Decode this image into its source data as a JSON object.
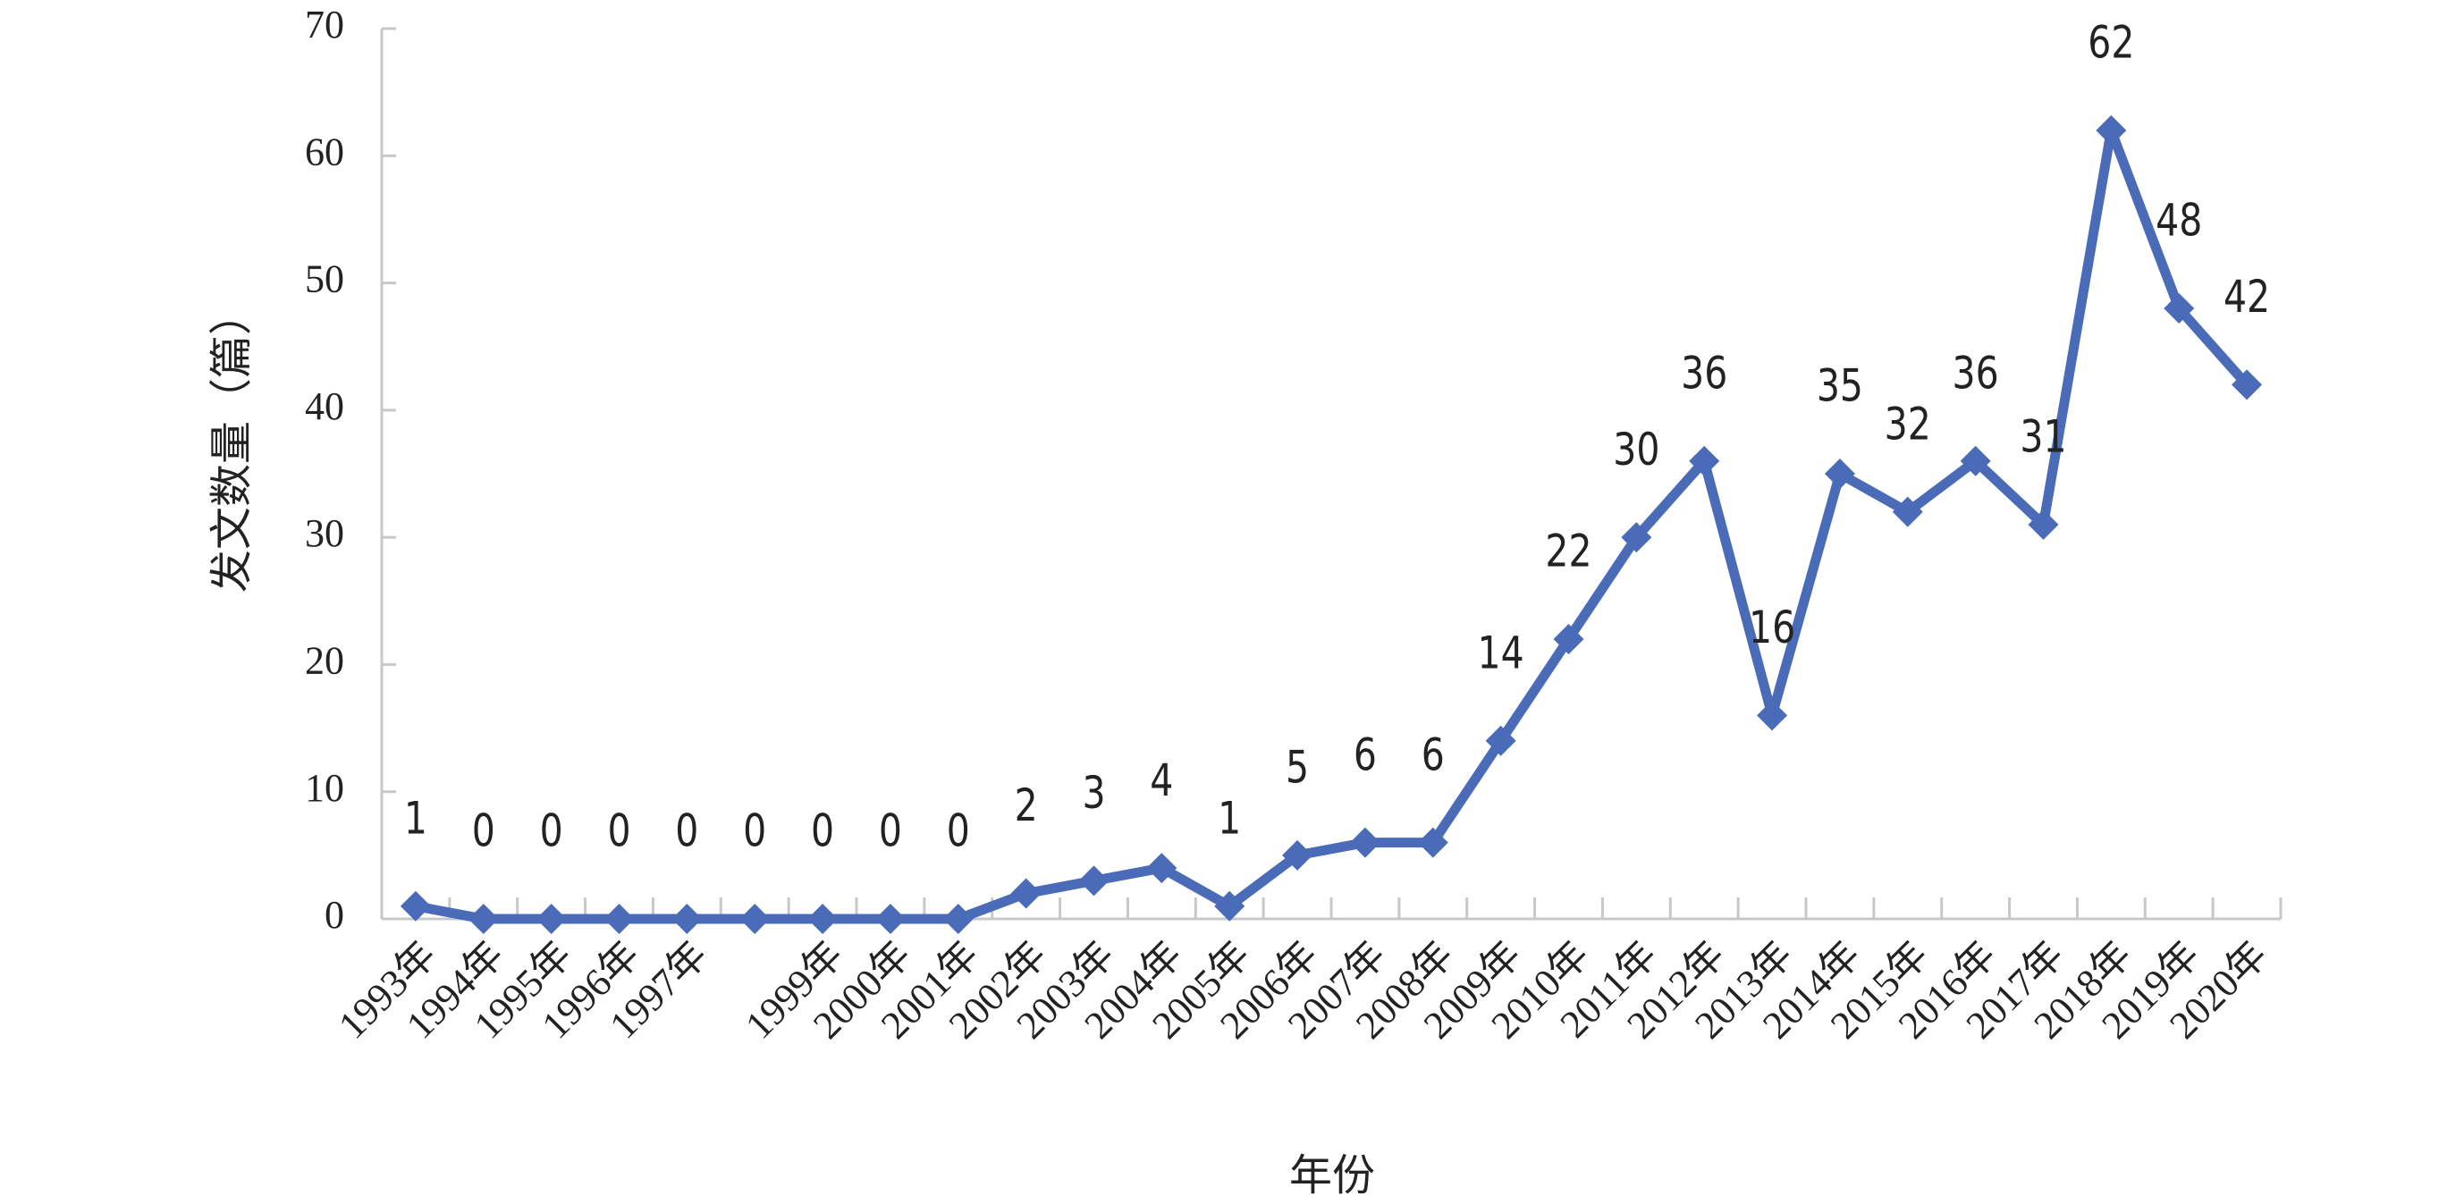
{
  "chart_data": {
    "type": "line",
    "x_label": "年份",
    "y_label": "发文数量（篇）",
    "categories": [
      "1993年",
      "1994年",
      "1995年",
      "1996年",
      "1997年",
      null,
      "1999年",
      "2000年",
      "2001年",
      "2002年",
      "2003年",
      "2004年",
      "2005年",
      "2006年",
      "2007年",
      "2008年",
      "2009年",
      "2010年",
      "2011年",
      "2012年",
      "2013年",
      "2014年",
      "2015年",
      "2016年",
      "2017年",
      "2018年",
      "2019年",
      "2020年"
    ],
    "series": [
      {
        "name": "发文数量",
        "color": "#4a6bb8",
        "values": [
          1,
          0,
          0,
          0,
          0,
          0,
          0,
          0,
          0,
          2,
          3,
          4,
          1,
          5,
          6,
          6,
          14,
          22,
          30,
          36,
          16,
          35,
          32,
          36,
          31,
          62,
          48,
          42
        ]
      }
    ],
    "ylim": [
      0,
      70
    ],
    "yticks": [
      0,
      10,
      20,
      30,
      40,
      50,
      60,
      70
    ],
    "grid": false
  }
}
